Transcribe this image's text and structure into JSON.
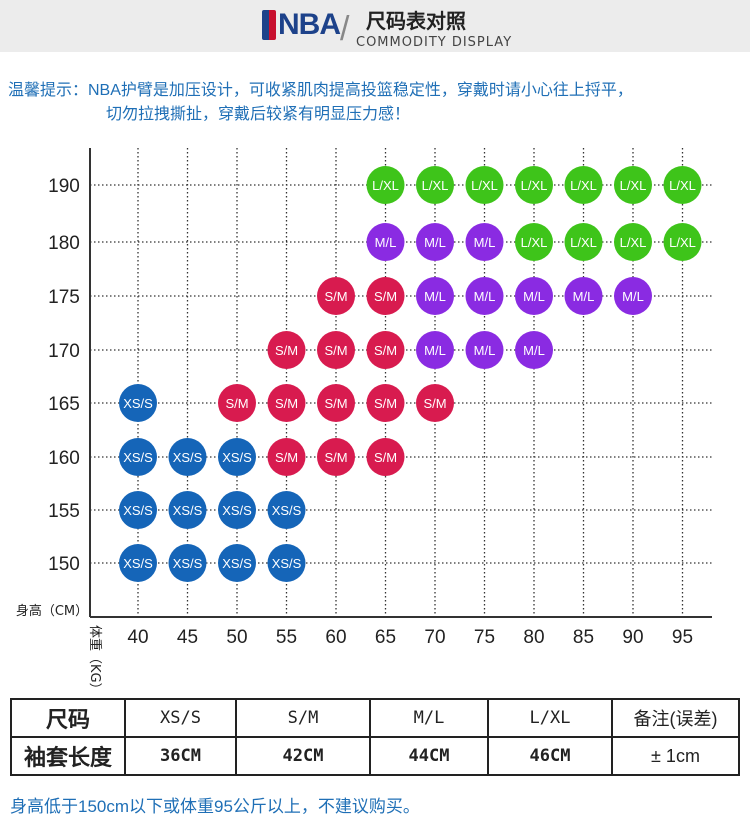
{
  "header": {
    "logo_text": "NBA",
    "title_cn": "尺码表对照",
    "title_en": "COMMODITY DISPLAY"
  },
  "tips": {
    "line1": "温馨提示：NBA护臂是加压设计，可收紧肌肉提高投篮稳定性，穿戴时请小心往上捋平，",
    "line2": "切勿拉拽撕扯，穿戴后较紧有明显压力感！"
  },
  "chart_data": {
    "type": "scatter",
    "ylabel": "身高（CM）",
    "xlabel": "体重（KG）",
    "x_ticks": [
      40,
      45,
      50,
      55,
      60,
      65,
      70,
      75,
      80,
      85,
      90,
      95
    ],
    "y_ticks": [
      150,
      155,
      160,
      165,
      170,
      175,
      180,
      190
    ],
    "grid": true,
    "colors": {
      "XS/S": "#1565b8",
      "S/M": "#d81b4f",
      "M/L": "#8a2be2",
      "L/XL": "#3ec41a"
    },
    "points": [
      {
        "height": 190,
        "weight": 65,
        "size": "L/XL"
      },
      {
        "height": 190,
        "weight": 70,
        "size": "L/XL"
      },
      {
        "height": 190,
        "weight": 75,
        "size": "L/XL"
      },
      {
        "height": 190,
        "weight": 80,
        "size": "L/XL"
      },
      {
        "height": 190,
        "weight": 85,
        "size": "L/XL"
      },
      {
        "height": 190,
        "weight": 90,
        "size": "L/XL"
      },
      {
        "height": 190,
        "weight": 95,
        "size": "L/XL"
      },
      {
        "height": 180,
        "weight": 65,
        "size": "M/L"
      },
      {
        "height": 180,
        "weight": 70,
        "size": "M/L"
      },
      {
        "height": 180,
        "weight": 75,
        "size": "M/L"
      },
      {
        "height": 180,
        "weight": 80,
        "size": "L/XL"
      },
      {
        "height": 180,
        "weight": 85,
        "size": "L/XL"
      },
      {
        "height": 180,
        "weight": 90,
        "size": "L/XL"
      },
      {
        "height": 180,
        "weight": 95,
        "size": "L/XL"
      },
      {
        "height": 175,
        "weight": 60,
        "size": "S/M"
      },
      {
        "height": 175,
        "weight": 65,
        "size": "S/M"
      },
      {
        "height": 175,
        "weight": 70,
        "size": "M/L"
      },
      {
        "height": 175,
        "weight": 75,
        "size": "M/L"
      },
      {
        "height": 175,
        "weight": 80,
        "size": "M/L"
      },
      {
        "height": 175,
        "weight": 85,
        "size": "M/L"
      },
      {
        "height": 175,
        "weight": 90,
        "size": "M/L"
      },
      {
        "height": 170,
        "weight": 55,
        "size": "S/M"
      },
      {
        "height": 170,
        "weight": 60,
        "size": "S/M"
      },
      {
        "height": 170,
        "weight": 65,
        "size": "S/M"
      },
      {
        "height": 170,
        "weight": 70,
        "size": "M/L"
      },
      {
        "height": 170,
        "weight": 75,
        "size": "M/L"
      },
      {
        "height": 170,
        "weight": 80,
        "size": "M/L"
      },
      {
        "height": 165,
        "weight": 40,
        "size": "XS/S"
      },
      {
        "height": 165,
        "weight": 50,
        "size": "S/M"
      },
      {
        "height": 165,
        "weight": 55,
        "size": "S/M"
      },
      {
        "height": 165,
        "weight": 60,
        "size": "S/M"
      },
      {
        "height": 165,
        "weight": 65,
        "size": "S/M"
      },
      {
        "height": 165,
        "weight": 70,
        "size": "S/M"
      },
      {
        "height": 160,
        "weight": 40,
        "size": "XS/S"
      },
      {
        "height": 160,
        "weight": 45,
        "size": "XS/S"
      },
      {
        "height": 160,
        "weight": 50,
        "size": "XS/S"
      },
      {
        "height": 160,
        "weight": 55,
        "size": "S/M"
      },
      {
        "height": 160,
        "weight": 60,
        "size": "S/M"
      },
      {
        "height": 160,
        "weight": 65,
        "size": "S/M"
      },
      {
        "height": 155,
        "weight": 40,
        "size": "XS/S"
      },
      {
        "height": 155,
        "weight": 45,
        "size": "XS/S"
      },
      {
        "height": 155,
        "weight": 50,
        "size": "XS/S"
      },
      {
        "height": 155,
        "weight": 55,
        "size": "XS/S"
      },
      {
        "height": 150,
        "weight": 40,
        "size": "XS/S"
      },
      {
        "height": 150,
        "weight": 45,
        "size": "XS/S"
      },
      {
        "height": 150,
        "weight": 50,
        "size": "XS/S"
      },
      {
        "height": 150,
        "weight": 55,
        "size": "XS/S"
      }
    ]
  },
  "size_table": {
    "row1": {
      "label": "尺码",
      "cells": [
        "XS/S",
        "S/M",
        "M/L",
        "L/XL"
      ],
      "note": "备注(误差)"
    },
    "row2": {
      "label": "袖套长度",
      "cells": [
        "36CM",
        "42CM",
        "44CM",
        "46CM"
      ],
      "note": "± 1cm"
    }
  },
  "footer_note": "身高低于150cm以下或体重95公斤以上，不建议购买。"
}
